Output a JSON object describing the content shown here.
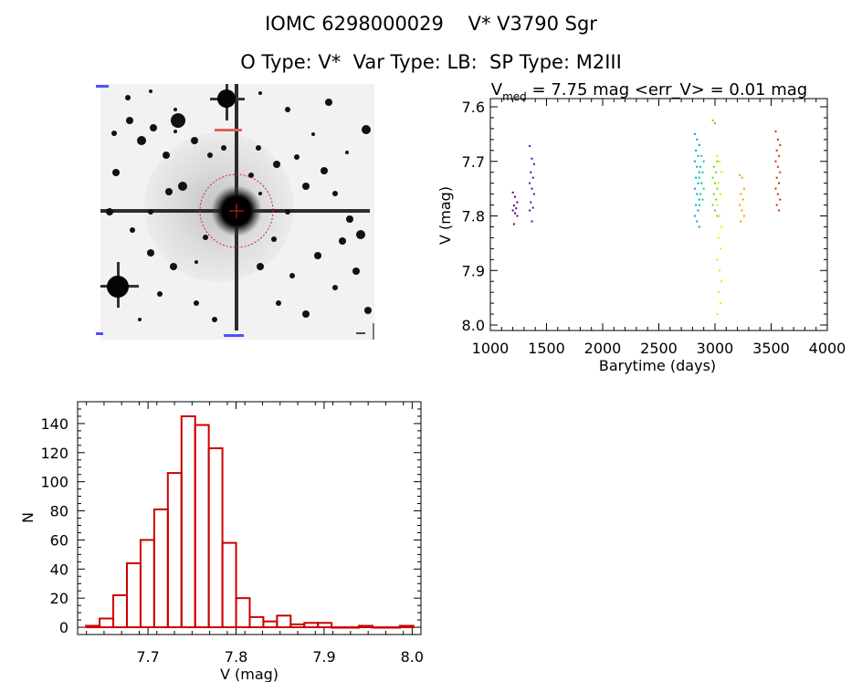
{
  "header": {
    "title_line1": "IOMC 6298000029    V* V3790 Sgr",
    "title_line2": "O Type: V*  Var Type: LB:  SP Type: M2III"
  },
  "colors": {
    "histogram": "#cc0000",
    "axes": "#000000",
    "thumbnail_marker": "#dd2222",
    "thumbnail_background": "#f2f2f2"
  },
  "thumbnail": {
    "top_left_label": "",
    "top_center_label": "",
    "bottom_left_label": "",
    "bottom_center_label": "",
    "bottom_right_label": ""
  },
  "chart_data": [
    {
      "type": "scatter",
      "title_prefix": "V",
      "title_subscript": "med",
      "title_suffix": " = 7.75 mag <err_V> = 0.01 mag",
      "xlabel": "Barytime (days)",
      "ylabel": "V (mag)",
      "xlim": [
        1000,
        4000
      ],
      "ylim": [
        8.0,
        7.6
      ],
      "x_ticks": [
        1000,
        1500,
        2000,
        2500,
        3000,
        3500,
        4000
      ],
      "y_ticks": [
        7.6,
        7.7,
        7.8,
        7.9,
        8.0
      ],
      "y_tick_labels": [
        "7.6",
        "7.7",
        "7.8",
        "7.9",
        "8.0"
      ],
      "y_reversed": true,
      "groups": [
        {
          "x": 1220,
          "color": "#4b0080",
          "values": [
            7.757,
            7.765,
            7.775,
            7.781,
            7.786,
            7.79,
            7.795,
            7.8,
            7.815
          ]
        },
        {
          "x": 1370,
          "color": "#3a1aa8",
          "values": [
            7.672,
            7.695,
            7.705,
            7.72,
            7.73,
            7.74,
            7.75,
            7.76,
            7.775,
            7.785,
            7.79,
            7.81
          ]
        },
        {
          "x": 2840,
          "color": "#00a0d0",
          "values": [
            7.65,
            7.66,
            7.67,
            7.68,
            7.69,
            7.7,
            7.71,
            7.72,
            7.73,
            7.74,
            7.75,
            7.76,
            7.77,
            7.78,
            7.79,
            7.8,
            7.81,
            7.82
          ]
        },
        {
          "x": 2880,
          "color": "#00c8a0",
          "values": [
            7.67,
            7.69,
            7.7,
            7.71,
            7.72,
            7.73,
            7.74,
            7.75,
            7.76,
            7.77,
            7.78
          ]
        },
        {
          "x": 3000,
          "color": "#60d820",
          "values": [
            7.625,
            7.63,
            7.7,
            7.71,
            7.72,
            7.73,
            7.74,
            7.75,
            7.76,
            7.77,
            7.78,
            7.79,
            7.8
          ]
        },
        {
          "x": 3040,
          "color": "#e8e800",
          "values": [
            7.69,
            7.7,
            7.72,
            7.74,
            7.76,
            7.78,
            7.8,
            7.82,
            7.84,
            7.86,
            7.88,
            7.9,
            7.92,
            7.94,
            7.96,
            7.98
          ]
        },
        {
          "x": 3240,
          "color": "#e8a000",
          "values": [
            7.725,
            7.73,
            7.75,
            7.76,
            7.77,
            7.78,
            7.79,
            7.8,
            7.81
          ]
        },
        {
          "x": 3560,
          "color": "#c83000",
          "values": [
            7.645,
            7.66,
            7.67,
            7.68,
            7.69,
            7.7,
            7.71,
            7.72,
            7.73,
            7.74,
            7.75,
            7.76,
            7.77,
            7.78,
            7.79
          ]
        }
      ]
    },
    {
      "type": "bar",
      "subtype": "histogram",
      "xlabel": "V (mag)",
      "ylabel": "N",
      "xlim": [
        7.62,
        8.01
      ],
      "ylim": [
        -5,
        155
      ],
      "x_ticks": [
        7.7,
        7.8,
        7.9,
        8.0
      ],
      "x_tick_labels": [
        "7.7",
        "7.8",
        "7.9",
        "8.0"
      ],
      "y_ticks": [
        0,
        20,
        40,
        60,
        80,
        100,
        120,
        140
      ],
      "bin_width": 0.0155,
      "bin_starts": [
        7.6295,
        7.645,
        7.6605,
        7.676,
        7.6915,
        7.707,
        7.7225,
        7.738,
        7.7535,
        7.769,
        7.7845,
        7.8,
        7.8155,
        7.831,
        7.8465,
        7.862,
        7.8775,
        7.893,
        7.9085,
        7.924,
        7.9395,
        7.955,
        7.9705,
        7.986
      ],
      "counts": [
        1,
        6,
        22,
        44,
        60,
        81,
        106,
        145,
        139,
        123,
        58,
        20,
        7,
        4,
        8,
        2,
        3,
        3,
        0,
        0,
        1,
        0,
        0,
        1
      ]
    }
  ]
}
